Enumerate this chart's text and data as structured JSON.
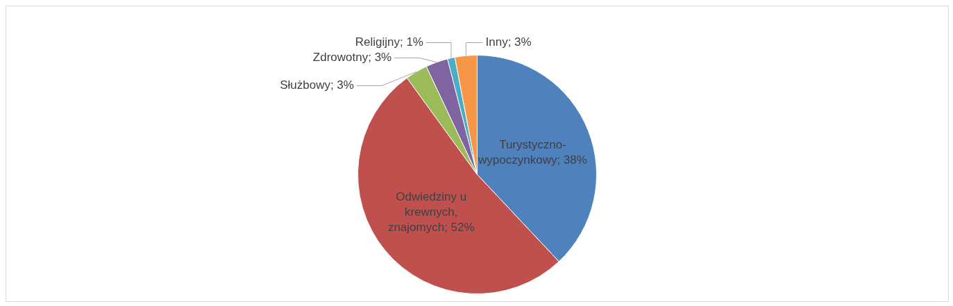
{
  "chart_data": {
    "type": "pie",
    "categories": [
      "Turystyczno-wypoczynkowy",
      "Odwiedziny u krewnych, znajomych",
      "Służbowy",
      "Zdrowotny",
      "Religijny",
      "Inny"
    ],
    "values": [
      38,
      52,
      3,
      3,
      1,
      3
    ],
    "value_labels": [
      "38%",
      "52%",
      "3%",
      "3%",
      "1%",
      "3%"
    ],
    "colors": [
      "#4f81bd",
      "#c0504d",
      "#9bbb59",
      "#8064a2",
      "#4bacc6",
      "#f79646"
    ],
    "legend": false
  }
}
